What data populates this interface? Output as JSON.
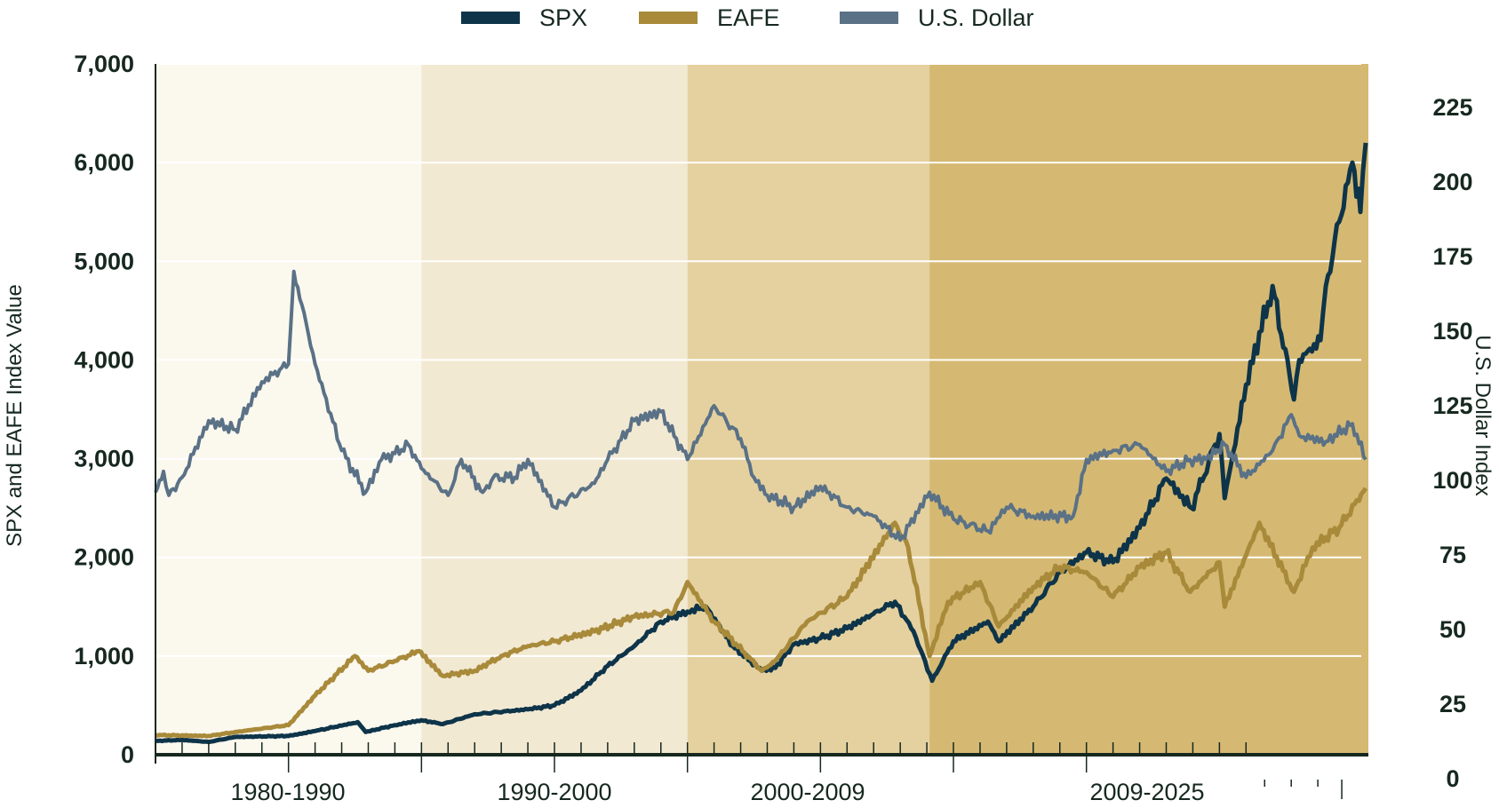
{
  "chart_data": {
    "type": "line",
    "legend_position": "top",
    "grid": true,
    "xlim": [
      1980,
      2025.5
    ],
    "ylabel": "SPX and EAFE Index Value",
    "ylabel_right": "U.S. Dollar Index",
    "ylim": [
      0,
      7000
    ],
    "yticks": [
      "0",
      "1,000",
      "2,000",
      "3,000",
      "4,000",
      "5,000",
      "6,000",
      "7,000"
    ],
    "ylim_right": [
      0,
      225
    ],
    "yticks_right": [
      "0",
      "25",
      "50",
      "75",
      "100",
      "125",
      "150",
      "175",
      "200",
      "225"
    ],
    "periods": [
      {
        "label": "1980-1990",
        "start": 1980,
        "end": 1990,
        "color": "#fbf8ee"
      },
      {
        "label": "1990-2000",
        "start": 1990,
        "end": 2000,
        "color": "#f2e9d3"
      },
      {
        "label": "2000-2009",
        "start": 2000,
        "end": 2009.1,
        "color": "#e5d19f"
      },
      {
        "label": "2009-2025",
        "start": 2009.1,
        "end": 2025.5,
        "color": "#d5b972"
      }
    ],
    "series": [
      {
        "name": "SPX",
        "axis": "left",
        "color": "#0e3449",
        "points": [
          [
            1980,
            140
          ],
          [
            1981,
            150
          ],
          [
            1982,
            130
          ],
          [
            1983,
            180
          ],
          [
            1985,
            190
          ],
          [
            1986,
            240
          ],
          [
            1987.6,
            330
          ],
          [
            1987.9,
            230
          ],
          [
            1989,
            300
          ],
          [
            1990,
            350
          ],
          [
            1990.8,
            310
          ],
          [
            1992,
            410
          ],
          [
            1994,
            460
          ],
          [
            1995,
            500
          ],
          [
            1996,
            650
          ],
          [
            1997,
            900
          ],
          [
            1998,
            1100
          ],
          [
            1999,
            1350
          ],
          [
            2000,
            1450
          ],
          [
            2000.7,
            1500
          ],
          [
            2001.7,
            1100
          ],
          [
            2002.8,
            850
          ],
          [
            2003.3,
            880
          ],
          [
            2004,
            1120
          ],
          [
            2005,
            1180
          ],
          [
            2006,
            1280
          ],
          [
            2007.8,
            1550
          ],
          [
            2008.5,
            1250
          ],
          [
            2009.2,
            750
          ],
          [
            2010,
            1150
          ],
          [
            2011.3,
            1350
          ],
          [
            2011.7,
            1150
          ],
          [
            2013,
            1500
          ],
          [
            2014,
            1850
          ],
          [
            2015,
            2050
          ],
          [
            2016,
            1950
          ],
          [
            2017,
            2300
          ],
          [
            2018,
            2800
          ],
          [
            2018.95,
            2500
          ],
          [
            2020,
            3250
          ],
          [
            2020.2,
            2600
          ],
          [
            2021,
            3750
          ],
          [
            2022,
            4750
          ],
          [
            2022.8,
            3600
          ],
          [
            2023,
            4000
          ],
          [
            2023.8,
            4200
          ],
          [
            2024,
            4750
          ],
          [
            2024.5,
            5400
          ],
          [
            2025,
            6000
          ],
          [
            2025.3,
            5500
          ],
          [
            2025.5,
            6200
          ]
        ]
      },
      {
        "name": "EAFE",
        "axis": "left",
        "color": "#a88a3a",
        "points": [
          [
            1980,
            200
          ],
          [
            1982,
            190
          ],
          [
            1983,
            230
          ],
          [
            1985,
            300
          ],
          [
            1986,
            600
          ],
          [
            1987.5,
            1000
          ],
          [
            1988,
            850
          ],
          [
            1989,
            950
          ],
          [
            1989.9,
            1050
          ],
          [
            1990.8,
            800
          ],
          [
            1992,
            850
          ],
          [
            1993,
            1000
          ],
          [
            1994,
            1100
          ],
          [
            1995,
            1150
          ],
          [
            1996.5,
            1250
          ],
          [
            1998,
            1400
          ],
          [
            1999.5,
            1450
          ],
          [
            2000,
            1750
          ],
          [
            2001,
            1350
          ],
          [
            2002.8,
            850
          ],
          [
            2003.3,
            950
          ],
          [
            2004.5,
            1350
          ],
          [
            2006,
            1600
          ],
          [
            2007.8,
            2350
          ],
          [
            2008.3,
            2100
          ],
          [
            2009.1,
            1000
          ],
          [
            2009.8,
            1550
          ],
          [
            2011,
            1750
          ],
          [
            2011.7,
            1300
          ],
          [
            2013,
            1700
          ],
          [
            2014,
            1900
          ],
          [
            2015,
            1850
          ],
          [
            2016,
            1600
          ],
          [
            2017,
            1900
          ],
          [
            2018,
            2050
          ],
          [
            2018.9,
            1650
          ],
          [
            2020,
            1950
          ],
          [
            2020.2,
            1500
          ],
          [
            2021.5,
            2350
          ],
          [
            2022.8,
            1650
          ],
          [
            2023.5,
            2100
          ],
          [
            2024.5,
            2300
          ],
          [
            2025.5,
            2700
          ]
        ]
      },
      {
        "name": "U.S. Dollar",
        "axis": "right",
        "color": "#5a7186",
        "points": [
          [
            1980,
            96
          ],
          [
            1980.3,
            103
          ],
          [
            1980.5,
            95
          ],
          [
            1981,
            101
          ],
          [
            1982,
            120
          ],
          [
            1983,
            117
          ],
          [
            1984,
            133
          ],
          [
            1985,
            139
          ],
          [
            1985.2,
            170
          ],
          [
            1985.5,
            159
          ],
          [
            1986,
            139
          ],
          [
            1987,
            110
          ],
          [
            1987.9,
            96
          ],
          [
            1988.5,
            107
          ],
          [
            1989,
            109
          ],
          [
            1989.5,
            112
          ],
          [
            1990,
            104
          ],
          [
            1991,
            95
          ],
          [
            1991.5,
            107
          ],
          [
            1992.3,
            96
          ],
          [
            1992.7,
            101
          ],
          [
            1993.5,
            101
          ],
          [
            1994,
            107
          ],
          [
            1995,
            91
          ],
          [
            1996.5,
            99
          ],
          [
            1997,
            107
          ],
          [
            1998,
            120
          ],
          [
            1999,
            123
          ],
          [
            2000,
            107
          ],
          [
            2001,
            125
          ],
          [
            2002,
            114
          ],
          [
            2002.5,
            101
          ],
          [
            2003,
            95
          ],
          [
            2004,
            91
          ],
          [
            2005,
            98
          ],
          [
            2006,
            91
          ],
          [
            2007,
            88
          ],
          [
            2008,
            80
          ],
          [
            2009.1,
            96
          ],
          [
            2010,
            87
          ],
          [
            2011.3,
            83
          ],
          [
            2012,
            91
          ],
          [
            2013,
            88
          ],
          [
            2014.5,
            88
          ],
          [
            2015,
            107
          ],
          [
            2016,
            110
          ],
          [
            2017,
            112
          ],
          [
            2018,
            103
          ],
          [
            2018.9,
            107
          ],
          [
            2019.5,
            107
          ],
          [
            2020.2,
            112
          ],
          [
            2021,
            101
          ],
          [
            2022,
            110
          ],
          [
            2022.7,
            122
          ],
          [
            2023,
            115
          ],
          [
            2024,
            113
          ],
          [
            2025,
            119
          ],
          [
            2025.5,
            107
          ]
        ]
      }
    ]
  }
}
